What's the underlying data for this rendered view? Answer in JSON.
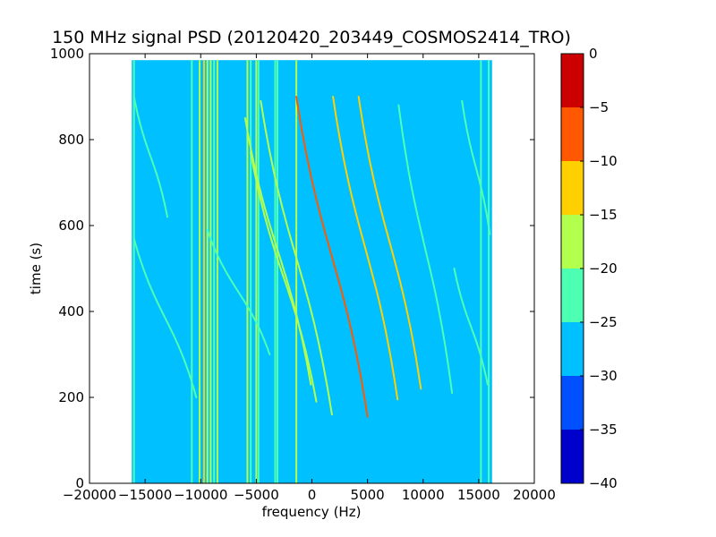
{
  "chart_data": {
    "type": "heatmap",
    "title": "150 MHz signal PSD (20120420_203449_COSMOS2414_TRO)",
    "xlabel": "frequency (Hz)",
    "ylabel": "time (s)",
    "xlim": [
      -20000,
      20000
    ],
    "ylim": [
      0,
      1000
    ],
    "xticks": [
      -20000,
      -15000,
      -10000,
      -5000,
      0,
      5000,
      10000,
      15000,
      20000
    ],
    "xtick_labels": [
      "−20000",
      "−15000",
      "−10000",
      "−5000",
      "0",
      "5000",
      "10000",
      "15000",
      "20000"
    ],
    "yticks": [
      0,
      200,
      400,
      600,
      800,
      1000
    ],
    "ytick_labels": [
      "0",
      "200",
      "400",
      "600",
      "800",
      "1000"
    ],
    "data_extent": {
      "x": [
        -16200,
        16200
      ],
      "y": [
        0,
        985
      ]
    },
    "background_level": -27.5,
    "colorbar": {
      "min": -40,
      "max": 0,
      "levels": [
        -40,
        -35,
        -30,
        -25,
        -20,
        -15,
        -10,
        -5,
        0
      ],
      "tick_labels": [
        "−40",
        "−35",
        "−30",
        "−25",
        "−20",
        "−15",
        "−10",
        "−5",
        "0"
      ],
      "colors": [
        "#0000cc",
        "#0050ff",
        "#00c0ff",
        "#4dffb3",
        "#b3ff4d",
        "#ffd000",
        "#ff5800",
        "#cc0000"
      ]
    },
    "vertical_lines": [
      {
        "freq": -16000,
        "level": -22
      },
      {
        "freq": -10800,
        "level": -22
      },
      {
        "freq": -10100,
        "level": -17
      },
      {
        "freq": -9700,
        "level": -12
      },
      {
        "freq": -9400,
        "level": -17
      },
      {
        "freq": -9100,
        "level": -17
      },
      {
        "freq": -8800,
        "level": -22
      },
      {
        "freq": -8500,
        "level": -17
      },
      {
        "freq": -5800,
        "level": -17
      },
      {
        "freq": -5500,
        "level": -22
      },
      {
        "freq": -5000,
        "level": -17
      },
      {
        "freq": -4800,
        "level": -22
      },
      {
        "freq": -3300,
        "level": -22
      },
      {
        "freq": -3100,
        "level": -22
      },
      {
        "freq": -1400,
        "level": -17
      },
      {
        "freq": 15200,
        "level": -22
      },
      {
        "freq": 15900,
        "level": -22
      }
    ],
    "doppler_tracks": [
      {
        "x_start": -16000,
        "x_end": -10400,
        "t_top": 570,
        "t_bottom": 200,
        "level": -22
      },
      {
        "x_start": -16000,
        "x_end": -13000,
        "t_top": 900,
        "t_bottom": 620,
        "level": -22
      },
      {
        "x_start": -9400,
        "x_end": -3800,
        "t_top": 590,
        "t_bottom": 300,
        "level": -22
      },
      {
        "x_start": -6000,
        "x_end": -100,
        "t_top": 850,
        "t_bottom": 230,
        "level": -17
      },
      {
        "x_start": -5500,
        "x_end": 400,
        "t_top": 770,
        "t_bottom": 190,
        "level": -17
      },
      {
        "x_start": -4600,
        "x_end": 1800,
        "t_top": 890,
        "t_bottom": 160,
        "level": -17
      },
      {
        "x_start": -1400,
        "x_end": 5000,
        "t_top": 900,
        "t_bottom": 155,
        "level": -7
      },
      {
        "x_start": 1900,
        "x_end": 7700,
        "t_top": 900,
        "t_bottom": 195,
        "level": -12
      },
      {
        "x_start": 4200,
        "x_end": 9800,
        "t_top": 900,
        "t_bottom": 220,
        "level": -12
      },
      {
        "x_start": 7800,
        "x_end": 12600,
        "t_top": 880,
        "t_bottom": 210,
        "level": -22
      },
      {
        "x_start": 13500,
        "x_end": 16000,
        "t_top": 890,
        "t_bottom": 580,
        "level": -22
      },
      {
        "x_start": 12800,
        "x_end": 15800,
        "t_top": 500,
        "t_bottom": 230,
        "level": -22
      }
    ]
  }
}
